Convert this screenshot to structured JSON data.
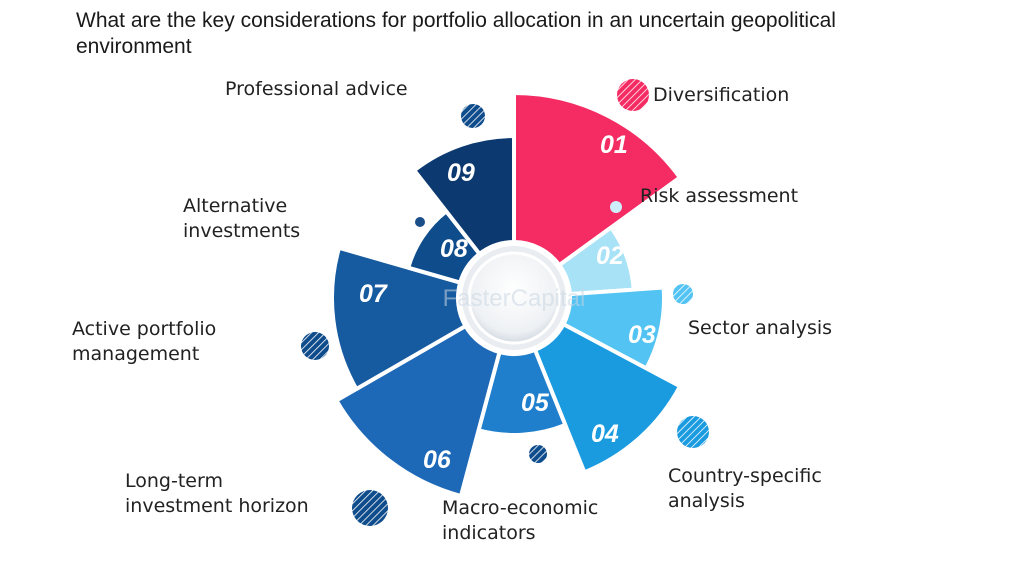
{
  "title": "What are the key considerations for portfolio allocation in an uncertain geopolitical environment",
  "watermark": "FasterCapital",
  "segments": [
    {
      "number": "01",
      "label": [
        "Diversification"
      ],
      "color": "#f42c63"
    },
    {
      "number": "02",
      "label": [
        "Risk assessment"
      ],
      "color": "#a7e2f7"
    },
    {
      "number": "03",
      "label": [
        "Sector analysis"
      ],
      "color": "#52c3f2"
    },
    {
      "number": "04",
      "label": [
        "Country-specific",
        "analysis"
      ],
      "color": "#1a9be0"
    },
    {
      "number": "05",
      "label": [
        "Macro-economic",
        "indicators"
      ],
      "color": "#1f7fcc"
    },
    {
      "number": "06",
      "label": [
        "Long-term",
        "investment horizon"
      ],
      "color": "#1d69b7"
    },
    {
      "number": "07",
      "label": [
        "Active portfolio",
        "management"
      ],
      "color": "#165aa0"
    },
    {
      "number": "08",
      "label": [
        "Alternative",
        "investments"
      ],
      "color": "#0f4c8c"
    },
    {
      "number": "09",
      "label": [
        "Professional advice"
      ],
      "color": "#0c3a70"
    }
  ]
}
